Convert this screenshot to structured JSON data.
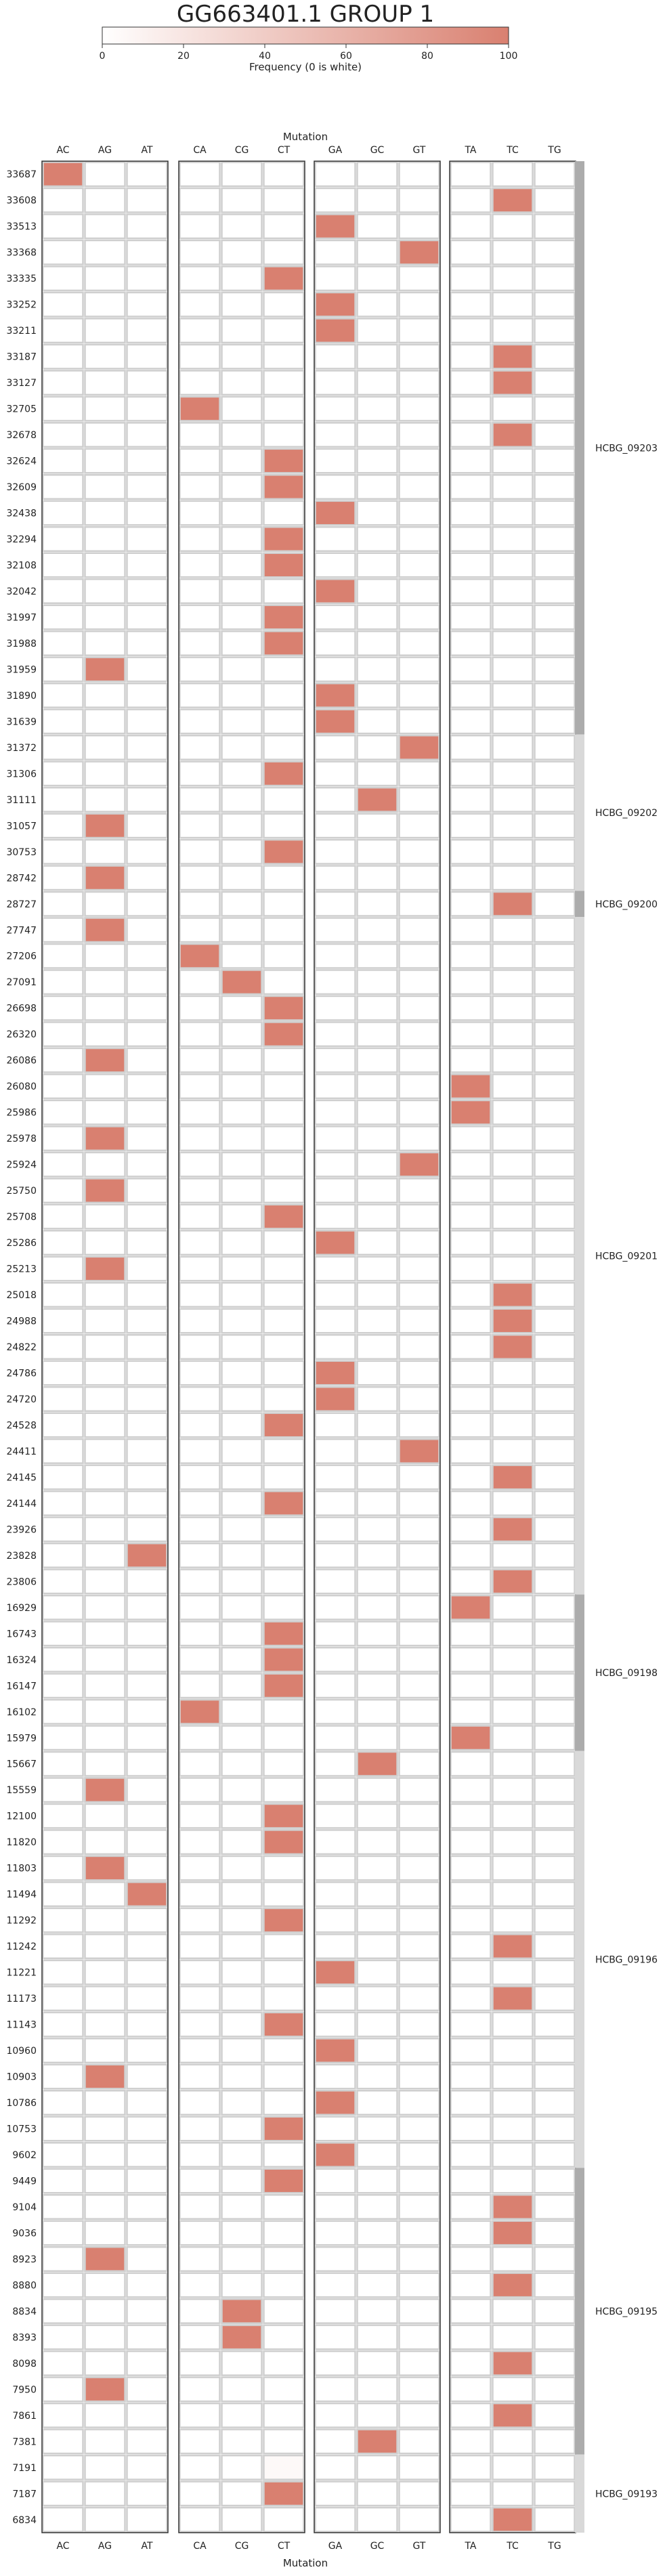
{
  "chart_data": {
    "type": "heatmap",
    "title": "GG663401.1 GROUP 1",
    "colorbar": {
      "label": "Frequency (0 is white)",
      "min": 0,
      "max": 100,
      "ticks": [
        "0",
        "20",
        "40",
        "60",
        "80",
        "100"
      ],
      "color_low": "#ffffff",
      "color_high": "#d98070"
    },
    "xlabel": "Mutation",
    "column_groups": [
      [
        "AC",
        "AG",
        "AT"
      ],
      [
        "CA",
        "CG",
        "CT"
      ],
      [
        "GA",
        "GC",
        "GT"
      ],
      [
        "TA",
        "TC",
        "TG"
      ]
    ],
    "rows": [
      "33687",
      "33608",
      "33513",
      "33368",
      "33335",
      "33252",
      "33211",
      "33187",
      "33127",
      "32705",
      "32678",
      "32624",
      "32609",
      "32438",
      "32294",
      "32108",
      "32042",
      "31997",
      "31988",
      "31959",
      "31890",
      "31639",
      "31372",
      "31306",
      "31111",
      "31057",
      "30753",
      "28742",
      "28727",
      "27747",
      "27206",
      "27091",
      "26698",
      "26320",
      "26086",
      "26080",
      "25986",
      "25978",
      "25924",
      "25750",
      "25708",
      "25286",
      "25213",
      "25018",
      "24988",
      "24822",
      "24786",
      "24720",
      "24528",
      "24411",
      "24145",
      "24144",
      "23926",
      "23828",
      "23806",
      "16929",
      "16743",
      "16324",
      "16147",
      "16102",
      "15979",
      "15667",
      "15559",
      "12100",
      "11820",
      "11803",
      "11494",
      "11292",
      "11242",
      "11221",
      "11173",
      "11143",
      "10960",
      "10903",
      "10786",
      "10753",
      "9602",
      "9449",
      "9104",
      "9036",
      "8923",
      "8880",
      "8834",
      "8393",
      "8098",
      "7950",
      "7861",
      "7381",
      "7191",
      "7187",
      "6834"
    ],
    "cells": [
      [
        "33687",
        "AC",
        100
      ],
      [
        "33608",
        "TC",
        100
      ],
      [
        "33513",
        "GA",
        100
      ],
      [
        "33368",
        "GT",
        100
      ],
      [
        "33335",
        "CT",
        100
      ],
      [
        "33252",
        "GA",
        100
      ],
      [
        "33211",
        "GA",
        100
      ],
      [
        "33187",
        "TC",
        100
      ],
      [
        "33127",
        "TC",
        100
      ],
      [
        "32705",
        "CA",
        100
      ],
      [
        "32678",
        "TC",
        100
      ],
      [
        "32624",
        "CT",
        100
      ],
      [
        "32609",
        "CT",
        100
      ],
      [
        "32438",
        "GA",
        100
      ],
      [
        "32294",
        "CT",
        100
      ],
      [
        "32108",
        "CT",
        100
      ],
      [
        "32042",
        "GA",
        100
      ],
      [
        "31997",
        "CT",
        100
      ],
      [
        "31988",
        "CT",
        100
      ],
      [
        "31959",
        "AG",
        100
      ],
      [
        "31890",
        "GA",
        100
      ],
      [
        "31639",
        "GA",
        100
      ],
      [
        "31372",
        "GT",
        100
      ],
      [
        "31306",
        "CT",
        100
      ],
      [
        "31111",
        "GC",
        100
      ],
      [
        "31057",
        "AG",
        100
      ],
      [
        "30753",
        "CT",
        100
      ],
      [
        "28742",
        "AG",
        100
      ],
      [
        "28727",
        "TC",
        100
      ],
      [
        "27747",
        "AG",
        100
      ],
      [
        "27206",
        "CA",
        100
      ],
      [
        "27091",
        "CG",
        100
      ],
      [
        "26698",
        "CT",
        100
      ],
      [
        "26320",
        "CT",
        100
      ],
      [
        "26086",
        "AG",
        100
      ],
      [
        "26080",
        "TA",
        100
      ],
      [
        "25986",
        "TA",
        100
      ],
      [
        "25978",
        "AG",
        100
      ],
      [
        "25924",
        "GT",
        100
      ],
      [
        "25750",
        "AG",
        100
      ],
      [
        "25708",
        "CT",
        100
      ],
      [
        "25286",
        "GA",
        100
      ],
      [
        "25213",
        "AG",
        100
      ],
      [
        "25018",
        "TC",
        100
      ],
      [
        "24988",
        "TC",
        100
      ],
      [
        "24822",
        "TC",
        100
      ],
      [
        "24786",
        "GA",
        100
      ],
      [
        "24720",
        "GA",
        100
      ],
      [
        "24528",
        "CT",
        100
      ],
      [
        "24411",
        "GT",
        100
      ],
      [
        "24145",
        "TC",
        100
      ],
      [
        "24144",
        "CT",
        100
      ],
      [
        "23926",
        "TC",
        100
      ],
      [
        "23828",
        "AT",
        100
      ],
      [
        "23806",
        "TC",
        100
      ],
      [
        "16929",
        "TA",
        100
      ],
      [
        "16743",
        "CT",
        100
      ],
      [
        "16324",
        "CT",
        100
      ],
      [
        "16147",
        "CT",
        100
      ],
      [
        "16102",
        "CA",
        100
      ],
      [
        "15979",
        "TA",
        100
      ],
      [
        "15667",
        "GC",
        100
      ],
      [
        "15559",
        "AG",
        100
      ],
      [
        "12100",
        "CT",
        100
      ],
      [
        "11820",
        "CT",
        100
      ],
      [
        "11803",
        "AG",
        100
      ],
      [
        "11494",
        "AT",
        100
      ],
      [
        "11292",
        "CT",
        100
      ],
      [
        "11242",
        "TC",
        100
      ],
      [
        "11221",
        "GA",
        100
      ],
      [
        "11173",
        "TC",
        100
      ],
      [
        "11143",
        "CT",
        100
      ],
      [
        "10960",
        "GA",
        100
      ],
      [
        "10903",
        "AG",
        100
      ],
      [
        "10786",
        "GA",
        100
      ],
      [
        "10753",
        "CT",
        100
      ],
      [
        "9602",
        "GA",
        100
      ],
      [
        "9449",
        "CT",
        100
      ],
      [
        "9104",
        "TC",
        100
      ],
      [
        "9036",
        "TC",
        100
      ],
      [
        "8923",
        "AG",
        100
      ],
      [
        "8880",
        "TC",
        100
      ],
      [
        "8834",
        "CG",
        100
      ],
      [
        "8393",
        "CG",
        100
      ],
      [
        "8098",
        "TC",
        100
      ],
      [
        "7950",
        "AG",
        100
      ],
      [
        "7861",
        "TC",
        100
      ],
      [
        "7381",
        "GC",
        100
      ],
      [
        "7191",
        "CT",
        5
      ],
      [
        "7187",
        "CT",
        100
      ],
      [
        "6834",
        "TC",
        100
      ]
    ],
    "row_groups": [
      {
        "label": "HCBG_09203",
        "from": "33687",
        "to": "31639",
        "shade": "#acacac"
      },
      {
        "label": "HCBG_09202",
        "from": "31372",
        "to": "28742",
        "shade": "#d9d9d9"
      },
      {
        "label": "HCBG_09200",
        "from": "28727",
        "to": "28727",
        "shade": "#acacac"
      },
      {
        "label": "HCBG_09201",
        "from": "27747",
        "to": "23806",
        "shade": "#d9d9d9"
      },
      {
        "label": "HCBG_09198",
        "from": "16929",
        "to": "15979",
        "shade": "#acacac"
      },
      {
        "label": "HCBG_09196",
        "from": "15667",
        "to": "9602",
        "shade": "#d9d9d9"
      },
      {
        "label": "HCBG_09195",
        "from": "9449",
        "to": "7381",
        "shade": "#acacac"
      },
      {
        "label": "HCBG_09193",
        "from": "7191",
        "to": "6834",
        "shade": "#d9d9d9"
      }
    ]
  }
}
